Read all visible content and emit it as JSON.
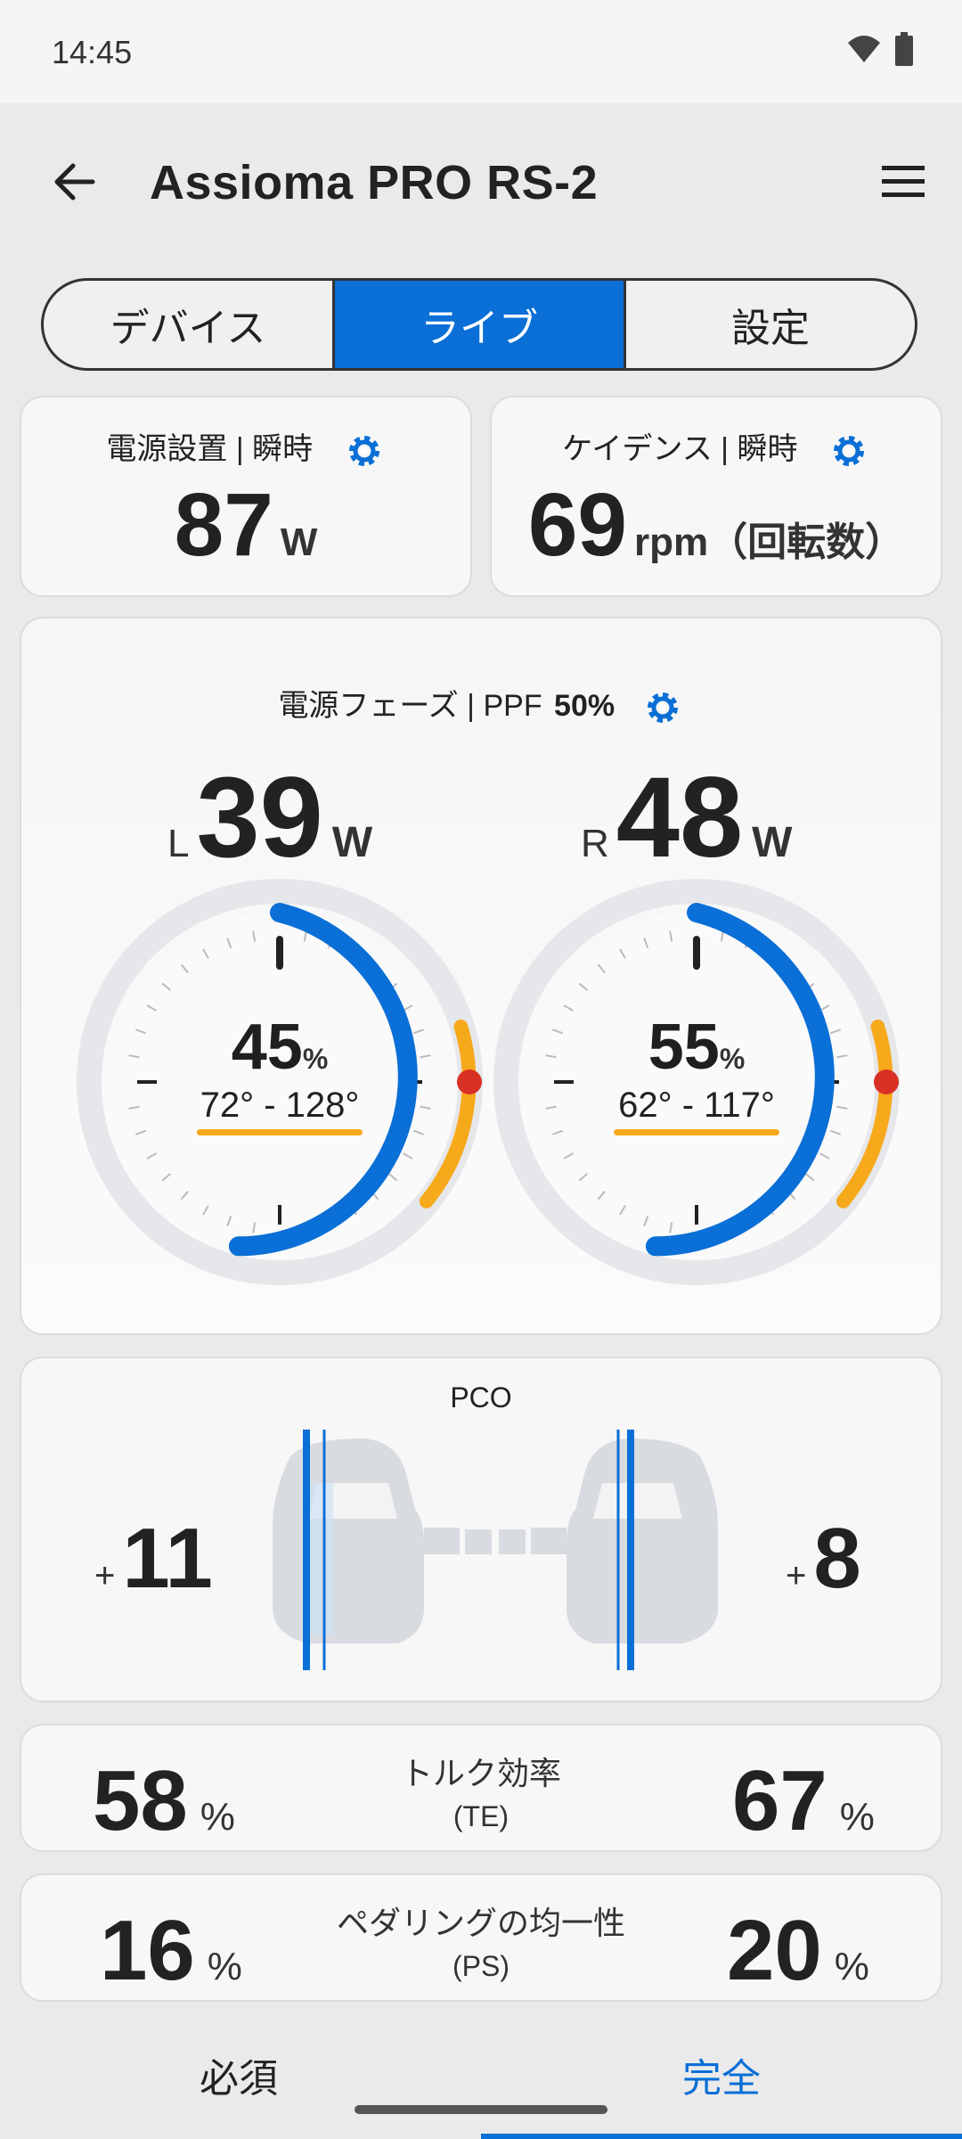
{
  "status": {
    "time": "14:45"
  },
  "header": {
    "title": "Assioma PRO RS-2"
  },
  "tabs": [
    {
      "label": "デバイス",
      "active": false
    },
    {
      "label": "ライブ",
      "active": true
    },
    {
      "label": "設定",
      "active": false
    }
  ],
  "power": {
    "label": "電源設置 | 瞬時",
    "value": "87",
    "unit": "W"
  },
  "cadence": {
    "label": "ケイデンス | 瞬時",
    "value": "69",
    "unit": "rpm（回転数）"
  },
  "phase": {
    "label": "電源フェーズ | PPF",
    "ppf": "50%",
    "left": {
      "side": "L",
      "watts": "39",
      "unit": "W",
      "percent": "45",
      "pct_unit": "%",
      "range": "72° - 128°"
    },
    "right": {
      "side": "R",
      "watts": "48",
      "unit": "W",
      "percent": "55",
      "pct_unit": "%",
      "range": "62° - 117°"
    }
  },
  "pco": {
    "label": "PCO",
    "left_sign": "+",
    "left_value": "11",
    "right_sign": "+",
    "right_value": "8"
  },
  "te": {
    "label1": "トルク効率",
    "label2": "(TE)",
    "left": "58",
    "right": "67",
    "unit": "%"
  },
  "ps": {
    "label1": "ペダリングの均一性",
    "label2": "(PS)",
    "left": "16",
    "right": "20",
    "unit": "%"
  },
  "bottom_nav": {
    "essential": "必須",
    "full": "完全"
  },
  "colors": {
    "accent": "#0a6fd6",
    "orange": "#f7a91c",
    "red": "#d93025"
  }
}
